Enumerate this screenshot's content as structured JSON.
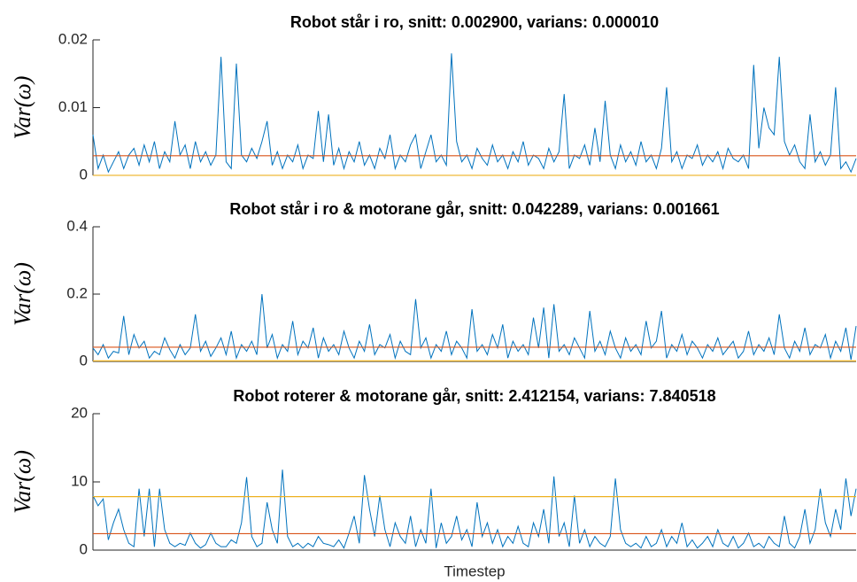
{
  "chart_data": [
    {
      "type": "line",
      "title": "Robot står i ro, snitt: 0.002900, varians: 0.000010",
      "ylabel": "Var(ω)",
      "color": "#0072bd",
      "ylim": [
        0,
        0.02
      ],
      "yticks": [
        0,
        0.01,
        0.02
      ],
      "hlines": [
        {
          "value": 0.0029,
          "color": "#d95319"
        },
        {
          "value": 1e-05,
          "color": "#edb120"
        }
      ],
      "values": [
        0.006,
        0.001,
        0.003,
        0.0005,
        0.002,
        0.0035,
        0.001,
        0.003,
        0.004,
        0.0015,
        0.0045,
        0.002,
        0.005,
        0.001,
        0.0035,
        0.002,
        0.008,
        0.003,
        0.0045,
        0.001,
        0.005,
        0.002,
        0.0035,
        0.0015,
        0.003,
        0.0175,
        0.002,
        0.001,
        0.0165,
        0.003,
        0.002,
        0.004,
        0.0025,
        0.005,
        0.008,
        0.0015,
        0.0035,
        0.001,
        0.003,
        0.002,
        0.0045,
        0.001,
        0.003,
        0.0025,
        0.0095,
        0.002,
        0.009,
        0.0015,
        0.004,
        0.001,
        0.0035,
        0.002,
        0.005,
        0.0015,
        0.003,
        0.001,
        0.004,
        0.0025,
        0.006,
        0.001,
        0.003,
        0.002,
        0.0045,
        0.006,
        0.001,
        0.0035,
        0.006,
        0.002,
        0.003,
        0.0015,
        0.018,
        0.005,
        0.002,
        0.003,
        0.001,
        0.004,
        0.0025,
        0.0015,
        0.0045,
        0.002,
        0.003,
        0.001,
        0.0035,
        0.002,
        0.005,
        0.0015,
        0.003,
        0.0025,
        0.001,
        0.004,
        0.002,
        0.0035,
        0.012,
        0.001,
        0.003,
        0.0025,
        0.0045,
        0.0015,
        0.007,
        0.002,
        0.011,
        0.003,
        0.001,
        0.0045,
        0.002,
        0.0035,
        0.0015,
        0.005,
        0.002,
        0.003,
        0.001,
        0.004,
        0.013,
        0.002,
        0.0035,
        0.001,
        0.003,
        0.0025,
        0.0045,
        0.0015,
        0.003,
        0.002,
        0.0035,
        0.001,
        0.004,
        0.0025,
        0.002,
        0.003,
        0.001,
        0.0163,
        0.004,
        0.01,
        0.007,
        0.006,
        0.0175,
        0.005,
        0.003,
        0.0045,
        0.002,
        0.001,
        0.009,
        0.002,
        0.0035,
        0.0015,
        0.003,
        0.013,
        0.001,
        0.002,
        0.0005,
        0.0025
      ]
    },
    {
      "type": "line",
      "title": "Robot står i ro & motorane går, snitt: 0.042289, varians: 0.001661",
      "ylabel": "Var(ω)",
      "color": "#0072bd",
      "ylim": [
        0,
        0.4
      ],
      "yticks": [
        0,
        0.2,
        0.4
      ],
      "hlines": [
        {
          "value": 0.042289,
          "color": "#d95319"
        },
        {
          "value": 0.001661,
          "color": "#edb120"
        }
      ],
      "values": [
        0.04,
        0.02,
        0.05,
        0.01,
        0.03,
        0.025,
        0.135,
        0.02,
        0.08,
        0.04,
        0.06,
        0.01,
        0.03,
        0.02,
        0.07,
        0.035,
        0.01,
        0.05,
        0.02,
        0.04,
        0.14,
        0.03,
        0.06,
        0.015,
        0.04,
        0.07,
        0.02,
        0.09,
        0.01,
        0.05,
        0.03,
        0.06,
        0.02,
        0.2,
        0.04,
        0.08,
        0.01,
        0.05,
        0.03,
        0.12,
        0.02,
        0.06,
        0.04,
        0.1,
        0.01,
        0.07,
        0.03,
        0.05,
        0.02,
        0.09,
        0.04,
        0.01,
        0.06,
        0.03,
        0.11,
        0.02,
        0.05,
        0.04,
        0.08,
        0.01,
        0.06,
        0.03,
        0.02,
        0.185,
        0.04,
        0.07,
        0.01,
        0.05,
        0.03,
        0.09,
        0.02,
        0.06,
        0.04,
        0.01,
        0.155,
        0.03,
        0.05,
        0.02,
        0.08,
        0.04,
        0.11,
        0.01,
        0.06,
        0.03,
        0.05,
        0.02,
        0.13,
        0.04,
        0.16,
        0.01,
        0.17,
        0.03,
        0.05,
        0.02,
        0.07,
        0.04,
        0.01,
        0.15,
        0.03,
        0.06,
        0.02,
        0.09,
        0.04,
        0.01,
        0.07,
        0.03,
        0.05,
        0.02,
        0.12,
        0.04,
        0.06,
        0.15,
        0.01,
        0.05,
        0.03,
        0.08,
        0.02,
        0.06,
        0.04,
        0.01,
        0.05,
        0.03,
        0.07,
        0.02,
        0.04,
        0.06,
        0.01,
        0.03,
        0.09,
        0.02,
        0.05,
        0.03,
        0.07,
        0.02,
        0.14,
        0.04,
        0.01,
        0.06,
        0.03,
        0.1,
        0.02,
        0.05,
        0.04,
        0.08,
        0.01,
        0.06,
        0.03,
        0.1,
        0.005,
        0.105
      ]
    },
    {
      "type": "line",
      "title": "Robot roterer & motorane går, snitt: 2.412154, varians: 7.840518",
      "ylabel": "Var(ω)",
      "xlabel": "Timestep",
      "color": "#0072bd",
      "ylim": [
        0,
        20
      ],
      "yticks": [
        0,
        10,
        20
      ],
      "hlines": [
        {
          "value": 2.412154,
          "color": "#d95319"
        },
        {
          "value": 7.840518,
          "color": "#edb120"
        }
      ],
      "values": [
        8,
        6.5,
        7.5,
        1.5,
        4,
        6,
        3,
        1,
        0.5,
        9,
        2,
        9,
        0.5,
        9,
        3,
        1,
        0.5,
        1,
        0.7,
        2.5,
        1,
        0.3,
        0.8,
        2.5,
        1,
        0.5,
        0.5,
        1.5,
        1,
        4,
        10.7,
        2,
        0.5,
        1,
        7,
        3,
        1,
        11.8,
        2,
        0.5,
        1,
        0.3,
        1,
        0.5,
        2,
        1,
        0.8,
        0.5,
        1.5,
        0.3,
        2.5,
        5,
        1,
        11,
        6,
        2,
        8,
        3,
        0.5,
        4,
        2,
        1,
        5,
        0.5,
        3,
        1,
        9,
        0.3,
        4,
        1,
        2,
        5,
        1.5,
        3,
        0.5,
        7,
        2,
        4,
        1,
        3,
        0.5,
        2,
        1,
        3.5,
        1,
        0.5,
        4,
        2,
        6,
        1,
        10.8,
        2,
        4,
        0.5,
        8,
        1,
        3,
        0.5,
        2,
        1,
        0.5,
        2,
        10.5,
        3,
        1,
        0.5,
        1,
        0.3,
        2,
        0.5,
        1,
        3,
        0.5,
        2,
        1,
        4,
        0.5,
        1.5,
        0.3,
        1,
        2,
        0.5,
        3,
        1,
        0.5,
        2,
        0.3,
        1,
        2.5,
        0.5,
        1,
        0.3,
        2,
        1,
        0.5,
        5,
        1,
        0.3,
        2,
        6,
        1,
        3,
        9,
        4,
        2,
        6,
        3,
        10.5,
        5,
        9
      ]
    }
  ]
}
